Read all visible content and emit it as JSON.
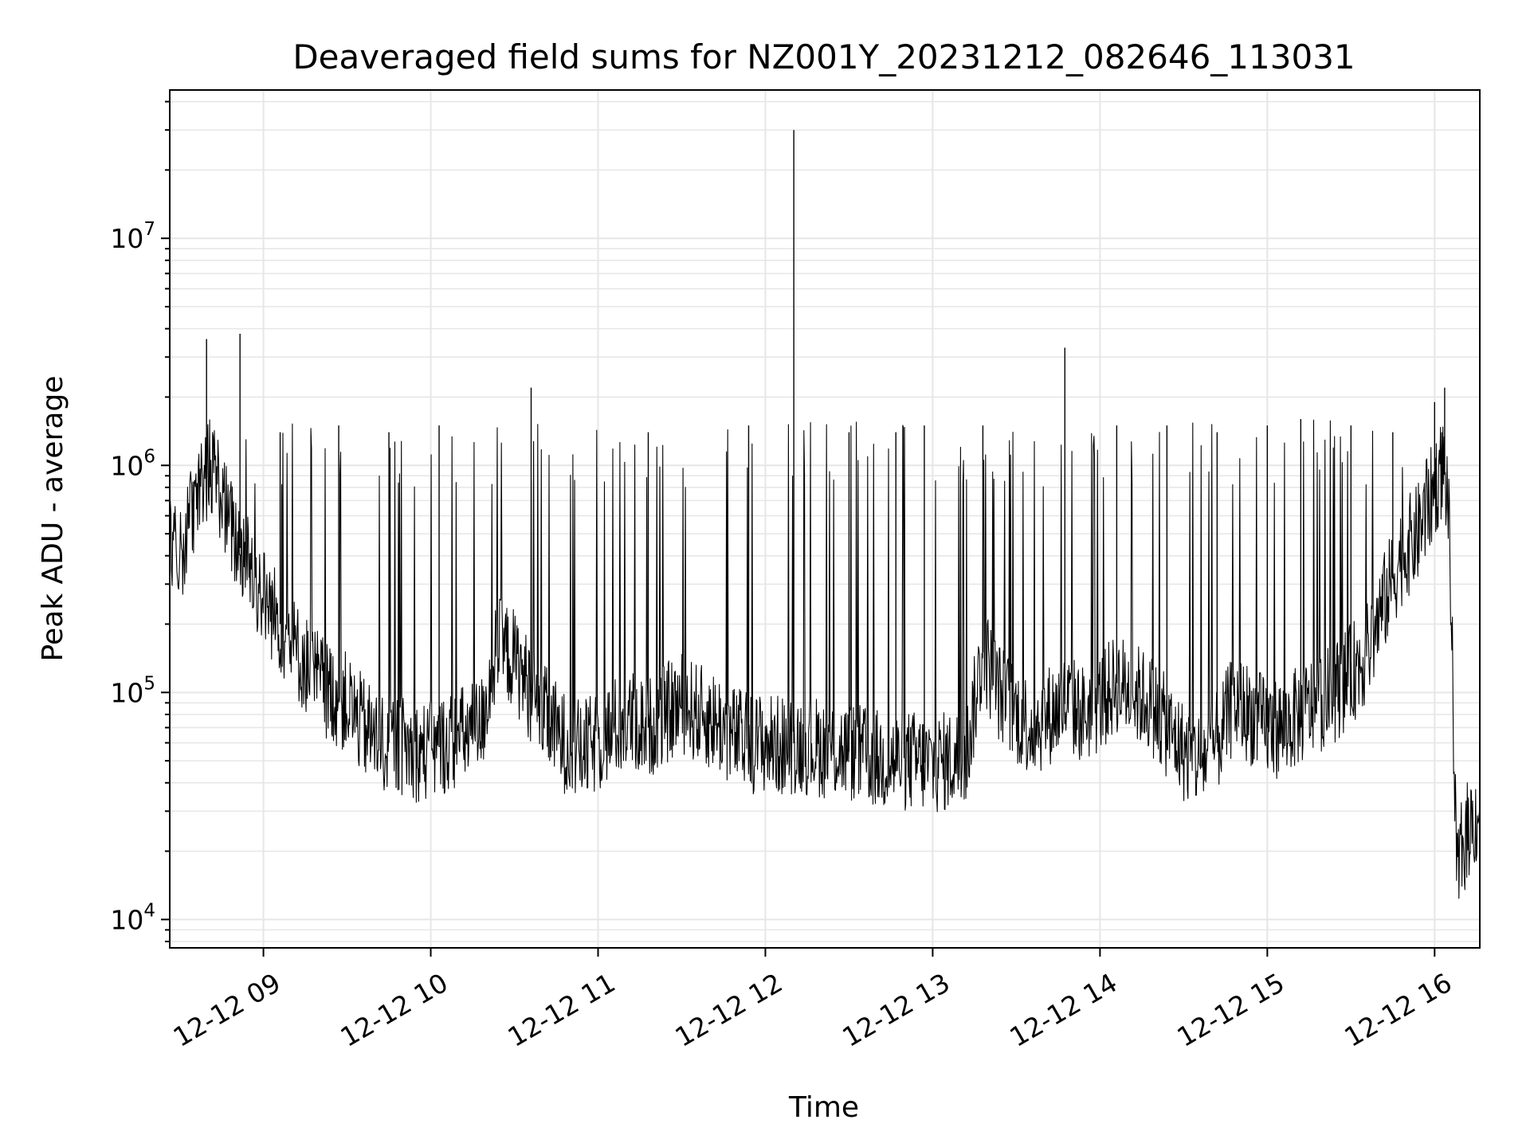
{
  "chart_data": {
    "type": "line",
    "title": "Deaveraged field sums for NZ001Y_20231212_082646_113031",
    "xlabel": "Time",
    "ylabel": "Peak ADU - average",
    "x_ticks": [
      "12-12 09",
      "12-12 10",
      "12-12 11",
      "12-12 12",
      "12-12 13",
      "12-12 14",
      "12-12 15",
      "12-12 16"
    ],
    "x_tick_hours": [
      9,
      10,
      11,
      12,
      13,
      14,
      15,
      16
    ],
    "xlim_hours": [
      8.44,
      16.27
    ],
    "y_scale": "log",
    "ylim": [
      7500,
      45000000
    ],
    "y_ticks": [
      10000,
      100000,
      1000000,
      10000000
    ],
    "y_tick_base": "10",
    "y_tick_exponents": [
      "4",
      "5",
      "6",
      "7"
    ],
    "grid": true,
    "line_color": "#000000",
    "series": [
      {
        "x": [
          8.44,
          8.5,
          8.56,
          8.62,
          8.68,
          8.72,
          8.78,
          8.84,
          8.9,
          8.96,
          9.02,
          9.1,
          9.2,
          9.3,
          9.4,
          9.5,
          9.6,
          9.7,
          9.8,
          9.9,
          10.0,
          10.1,
          10.2,
          10.3,
          10.4,
          10.5,
          10.6,
          10.7,
          10.8,
          10.9,
          11.0,
          11.1,
          11.2,
          11.3,
          11.4,
          11.5,
          11.6,
          11.7,
          11.8,
          11.9,
          12.0,
          12.1,
          12.18,
          12.3,
          12.4,
          12.5,
          12.6,
          12.7,
          12.8,
          12.9,
          13.0,
          13.1,
          13.2,
          13.3,
          13.4,
          13.5,
          13.6,
          13.7,
          13.8,
          13.9,
          14.0,
          14.1,
          14.2,
          14.3,
          14.4,
          14.5,
          14.6,
          14.7,
          14.8,
          14.9,
          15.0,
          15.1,
          15.2,
          15.3,
          15.4,
          15.5,
          15.6,
          15.7,
          15.8,
          15.9,
          16.0,
          16.05,
          16.08,
          16.11,
          16.13,
          16.16,
          16.2,
          16.27
        ],
        "y": [
          500000,
          400000,
          600000,
          700000,
          1000000,
          900000,
          600000,
          450000,
          400000,
          300000,
          250000,
          200000,
          150000,
          120000,
          100000,
          90000,
          70000,
          60000,
          60000,
          55000,
          55000,
          60000,
          65000,
          70000,
          160000,
          140000,
          100000,
          75000,
          60000,
          55000,
          60000,
          70000,
          75000,
          70000,
          80000,
          90000,
          80000,
          75000,
          65000,
          60000,
          60000,
          58000,
          60000,
          58000,
          56000,
          55000,
          52000,
          50000,
          50000,
          50000,
          48000,
          50000,
          52000,
          150000,
          100000,
          80000,
          70000,
          80000,
          90000,
          80000,
          90000,
          110000,
          100000,
          90000,
          70000,
          55000,
          50000,
          60000,
          90000,
          80000,
          70000,
          70000,
          80000,
          90000,
          100000,
          120000,
          150000,
          250000,
          400000,
          500000,
          800000,
          1000000,
          750000,
          100000,
          15000,
          20000,
          25000,
          30000
        ]
      },
      {
        "x": [
          8.66,
          8.86,
          9.1,
          9.45,
          9.75,
          10.05,
          10.6,
          11.3,
          11.9,
          12.17,
          12.5,
          12.78,
          12.95,
          13.3,
          13.79,
          14.1,
          14.4,
          14.7,
          15.0,
          15.2,
          15.5,
          15.75,
          16.0,
          16.06
        ],
        "y": [
          3600000,
          3800000,
          1400000,
          1500000,
          1400000,
          1500000,
          2200000,
          1400000,
          1500000,
          30000000,
          1400000,
          1400000,
          1500000,
          1500000,
          3300000,
          1500000,
          1500000,
          1400000,
          1500000,
          1600000,
          1500000,
          1400000,
          1900000,
          2200000
        ]
      }
    ]
  }
}
